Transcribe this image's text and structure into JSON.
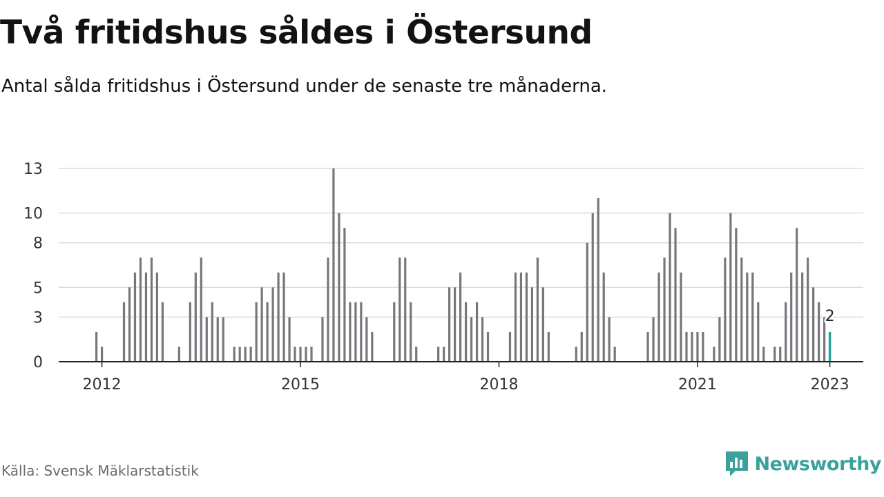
{
  "header": {
    "title": "Två fritidshus såldes i Östersund",
    "subtitle": "Antal sålda fritidshus i Östersund under de senaste tre månaderna."
  },
  "footer": {
    "source": "Källa: Svensk Mäklarstatistik",
    "brand": "Newsworthy"
  },
  "colors": {
    "bar": "#76767b",
    "highlight": "#22a39a",
    "grid": "#dcdcdc",
    "axis": "#222222",
    "brand": "#3aa29b"
  },
  "chart_data": {
    "type": "bar",
    "start_month": "2011-11",
    "values": [
      0,
      2,
      1,
      0,
      0,
      0,
      4,
      5,
      6,
      7,
      6,
      7,
      6,
      4,
      0,
      0,
      1,
      0,
      4,
      6,
      7,
      3,
      4,
      3,
      3,
      0,
      1,
      1,
      1,
      1,
      4,
      5,
      4,
      5,
      6,
      6,
      3,
      1,
      1,
      1,
      1,
      0,
      3,
      7,
      13,
      10,
      9,
      4,
      4,
      4,
      3,
      2,
      0,
      0,
      0,
      4,
      7,
      7,
      4,
      1,
      0,
      0,
      0,
      1,
      1,
      5,
      5,
      6,
      4,
      3,
      4,
      3,
      2,
      0,
      0,
      0,
      2,
      6,
      6,
      6,
      5,
      7,
      5,
      2,
      0,
      0,
      0,
      0,
      1,
      2,
      8,
      10,
      11,
      6,
      3,
      1,
      0,
      0,
      0,
      0,
      0,
      2,
      3,
      6,
      7,
      10,
      9,
      6,
      2,
      2,
      2,
      2,
      0,
      1,
      3,
      7,
      10,
      9,
      7,
      6,
      6,
      4,
      1,
      0,
      1,
      1,
      4,
      6,
      9,
      6,
      7,
      5,
      4,
      3,
      2
    ],
    "highlight_last": true,
    "last_label": "2",
    "y_ticks": [
      0,
      3,
      5,
      8,
      10,
      13
    ],
    "ylim": [
      0,
      13
    ],
    "x_ticks": [
      {
        "label": "2012",
        "month": "2012-01"
      },
      {
        "label": "2015",
        "month": "2015-01"
      },
      {
        "label": "2018",
        "month": "2018-01"
      },
      {
        "label": "2021",
        "month": "2021-01"
      },
      {
        "label": "2023",
        "month": "2023-01"
      }
    ],
    "xlabel": "",
    "ylabel": "",
    "grid": true
  }
}
